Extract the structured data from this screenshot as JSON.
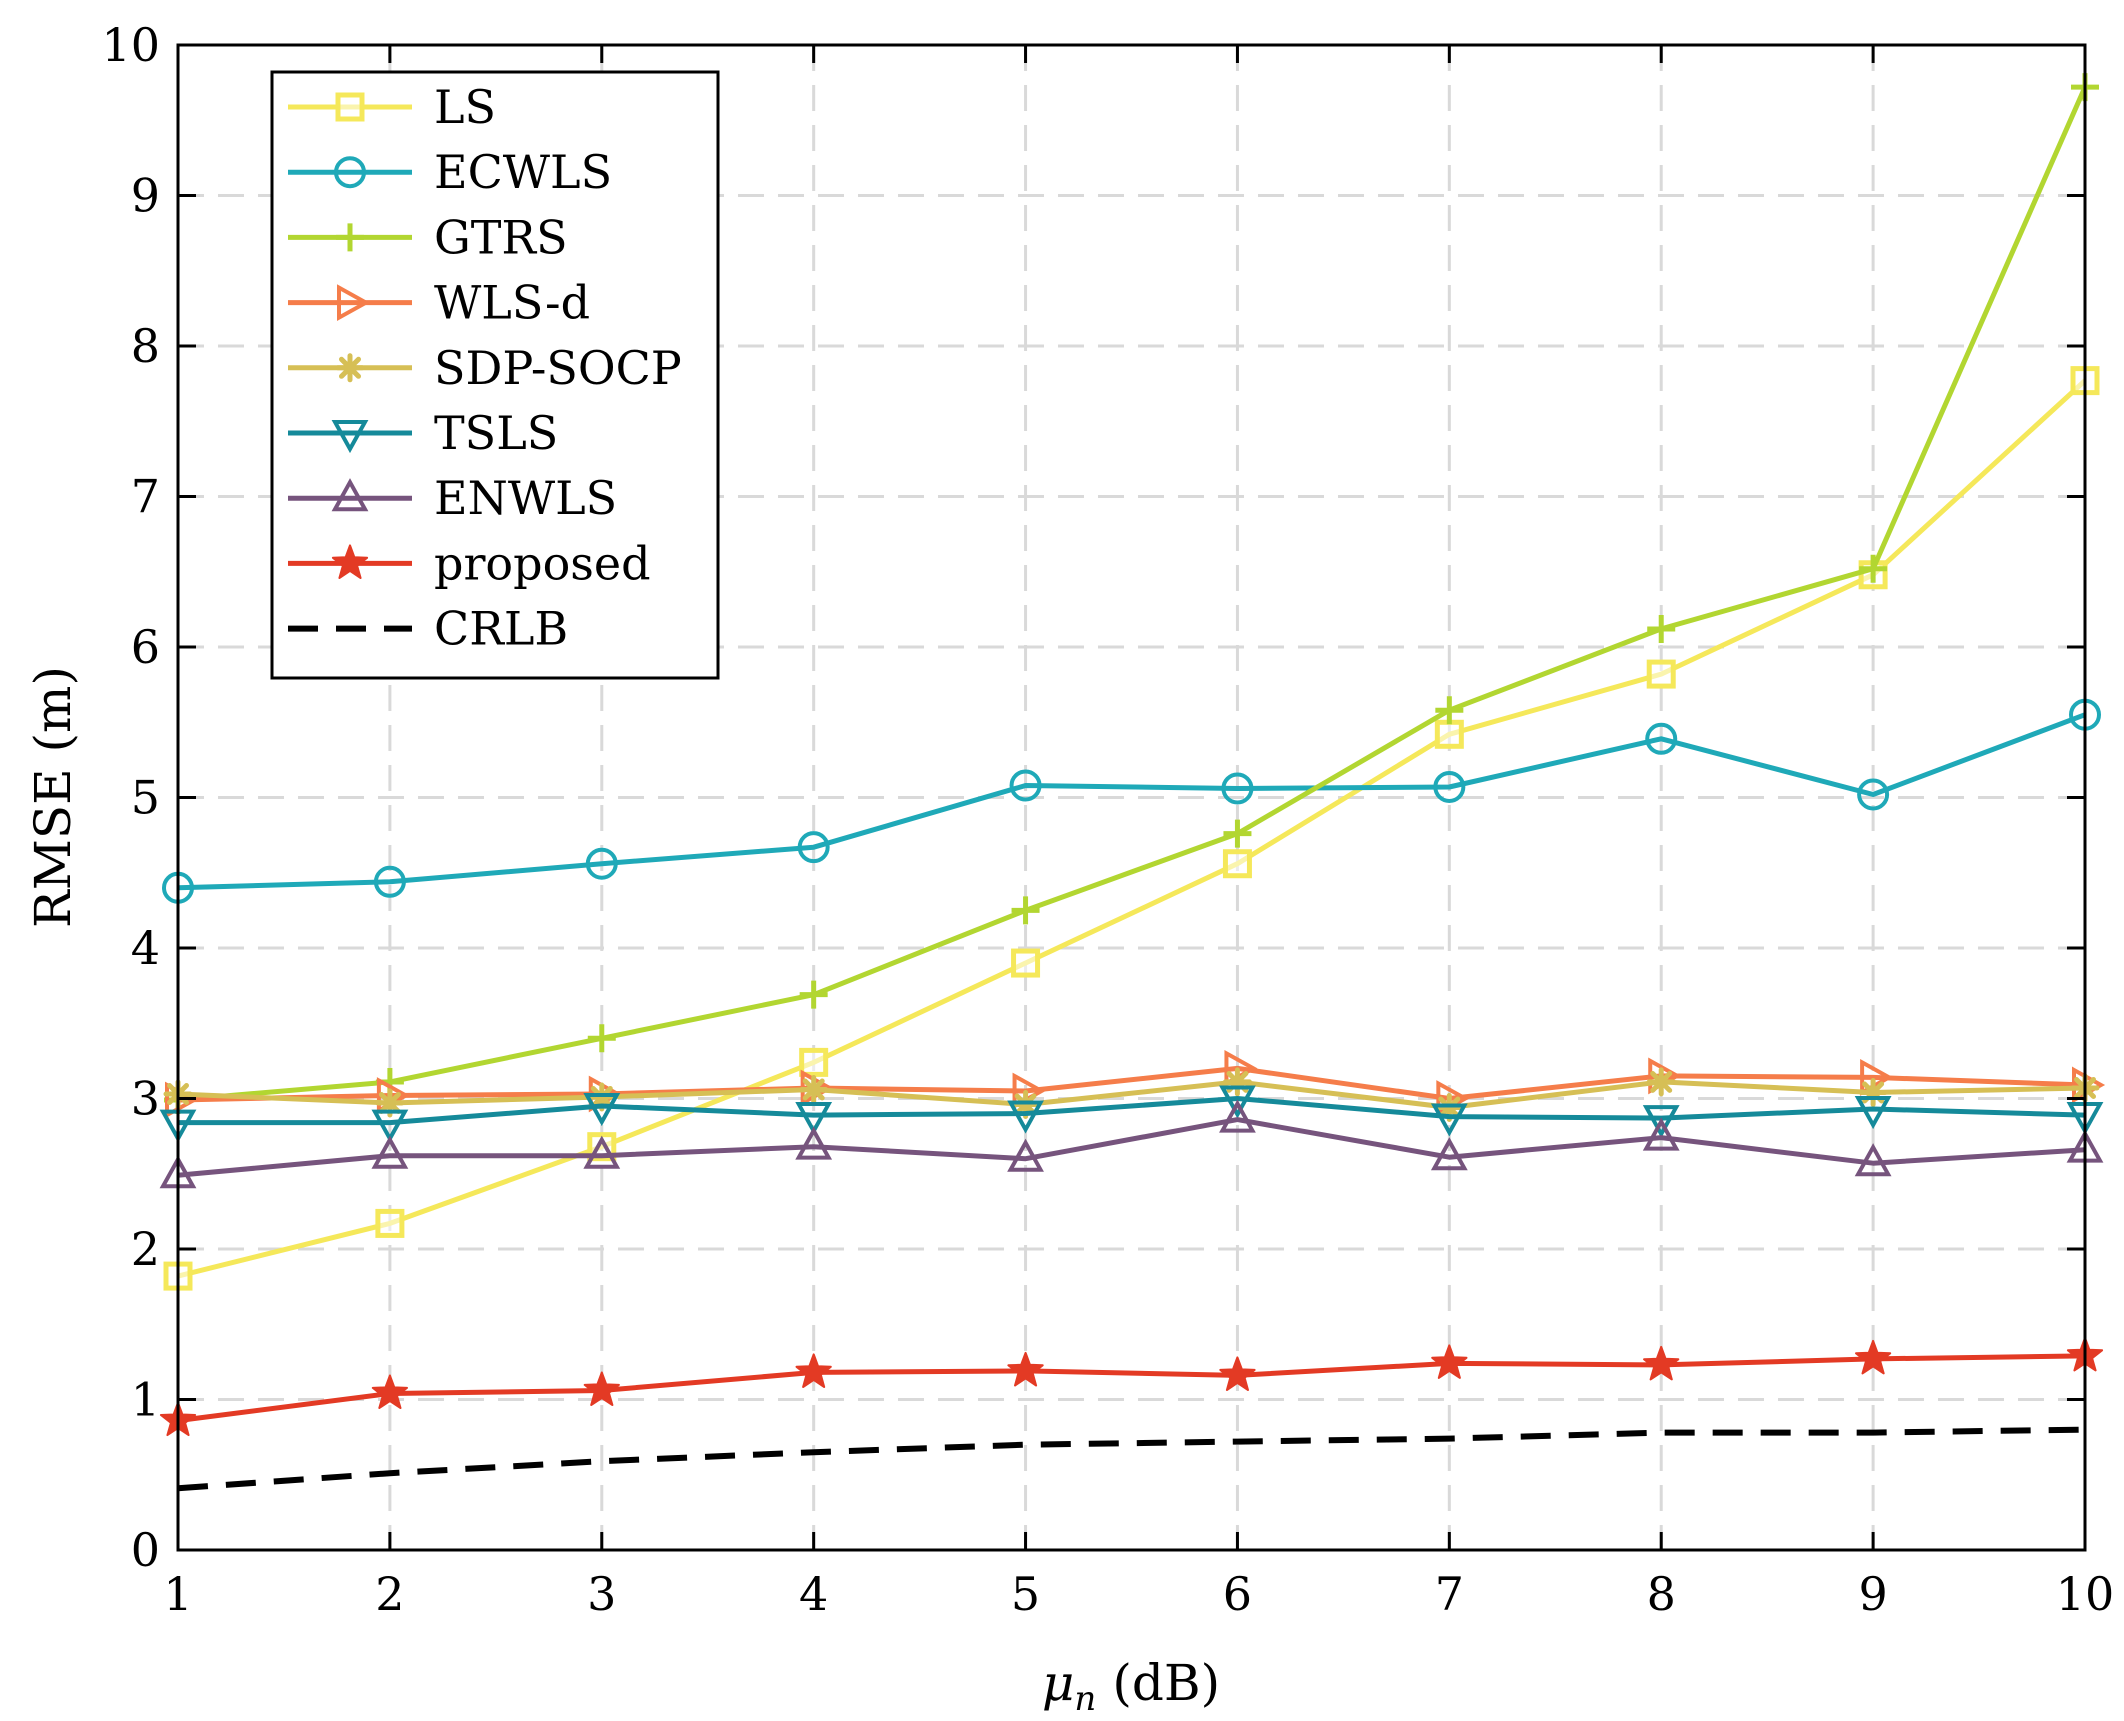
{
  "chart_data": {
    "type": "line",
    "title": "",
    "xlabel_symbol": "μ",
    "xlabel_subscript": "n",
    "xlabel_unit": "(dB)",
    "ylabel": "RMSE (m)",
    "xlim": [
      1,
      10
    ],
    "ylim": [
      0,
      10
    ],
    "x": [
      1,
      2,
      3,
      4,
      5,
      6,
      7,
      8,
      9,
      10
    ],
    "xticks": [
      "1",
      "2",
      "3",
      "4",
      "5",
      "6",
      "7",
      "8",
      "9",
      "10"
    ],
    "yticks": [
      "0",
      "1",
      "2",
      "3",
      "4",
      "5",
      "6",
      "7",
      "8",
      "9",
      "10"
    ],
    "grid": true,
    "legend_position": "top-left",
    "series": [
      {
        "name": "LS",
        "color": "#f5e85a",
        "marker": "square",
        "dashed": false,
        "values": [
          1.82,
          2.17,
          2.68,
          3.24,
          3.9,
          4.56,
          5.42,
          5.82,
          6.48,
          7.77
        ]
      },
      {
        "name": "ECWLS",
        "color": "#1fa9b8",
        "marker": "circle",
        "dashed": false,
        "values": [
          4.4,
          4.44,
          4.56,
          4.67,
          5.08,
          5.06,
          5.07,
          5.39,
          5.02,
          5.55
        ]
      },
      {
        "name": "GTRS",
        "color": "#b2d631",
        "marker": "plus",
        "dashed": false,
        "values": [
          2.99,
          3.11,
          3.4,
          3.69,
          4.25,
          4.76,
          5.58,
          6.12,
          6.52,
          9.72
        ]
      },
      {
        "name": "WLS-d",
        "color": "#f57d4a",
        "marker": "triangle-right",
        "dashed": false,
        "values": [
          2.99,
          3.02,
          3.03,
          3.07,
          3.05,
          3.2,
          3.0,
          3.15,
          3.14,
          3.09
        ]
      },
      {
        "name": "SDP-SOCP",
        "color": "#d6bf55",
        "marker": "asterisk",
        "dashed": false,
        "values": [
          3.03,
          2.97,
          3.01,
          3.06,
          2.96,
          3.11,
          2.94,
          3.11,
          3.04,
          3.07
        ]
      },
      {
        "name": "TSLS",
        "color": "#158a9a",
        "marker": "triangle-down",
        "dashed": false,
        "values": [
          2.84,
          2.84,
          2.95,
          2.89,
          2.9,
          3.0,
          2.88,
          2.87,
          2.93,
          2.89
        ]
      },
      {
        "name": "ENWLS",
        "color": "#76547d",
        "marker": "triangle-up",
        "dashed": false,
        "values": [
          2.49,
          2.62,
          2.62,
          2.68,
          2.6,
          2.86,
          2.61,
          2.74,
          2.57,
          2.66
        ]
      },
      {
        "name": "proposed",
        "color": "#e33a24",
        "marker": "star",
        "dashed": false,
        "values": [
          0.86,
          1.04,
          1.06,
          1.18,
          1.19,
          1.16,
          1.24,
          1.23,
          1.27,
          1.29
        ]
      },
      {
        "name": "CRLB",
        "color": "#000000",
        "marker": "none",
        "dashed": true,
        "values": [
          0.41,
          0.51,
          0.59,
          0.65,
          0.7,
          0.72,
          0.74,
          0.78,
          0.78,
          0.8
        ]
      }
    ]
  }
}
